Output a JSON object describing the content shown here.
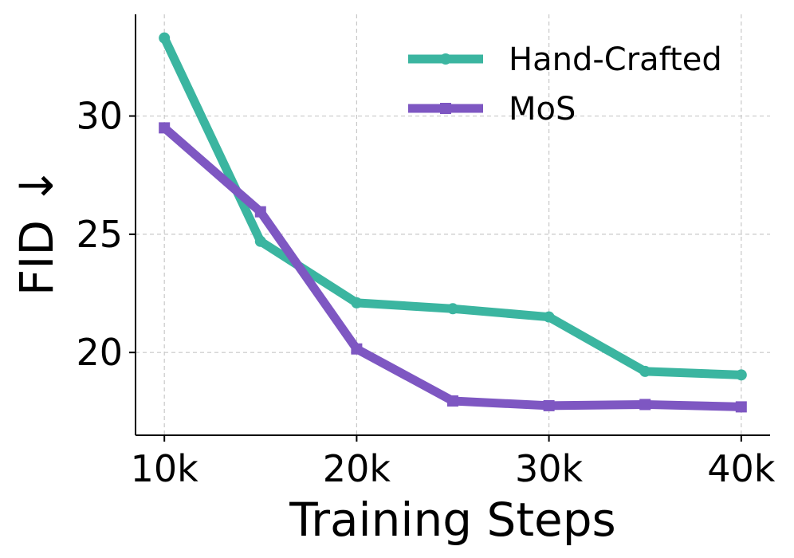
{
  "chart_data": {
    "type": "line",
    "title": "",
    "xlabel": "Training Steps",
    "ylabel": "FID ↓",
    "x": [
      10000,
      15000,
      20000,
      25000,
      30000,
      35000,
      40000
    ],
    "xticks": [
      10000,
      20000,
      30000,
      40000
    ],
    "xtick_labels": [
      "10k",
      "20k",
      "30k",
      "40k"
    ],
    "yticks": [
      20,
      25,
      30
    ],
    "ytick_labels": [
      "20",
      "25",
      "30"
    ],
    "xlim": [
      8500,
      41500
    ],
    "ylim": [
      16.5,
      34.3
    ],
    "grid": true,
    "legend_position": "top-right",
    "series": [
      {
        "name": "Hand-Crafted",
        "color": "#3bb5a0",
        "marker": "circle",
        "values": [
          33.3,
          24.7,
          22.1,
          21.85,
          21.5,
          19.2,
          19.05
        ]
      },
      {
        "name": "MoS",
        "color": "#7e57c2",
        "marker": "square",
        "values": [
          29.5,
          25.95,
          20.15,
          17.95,
          17.75,
          17.8,
          17.7
        ]
      }
    ]
  }
}
